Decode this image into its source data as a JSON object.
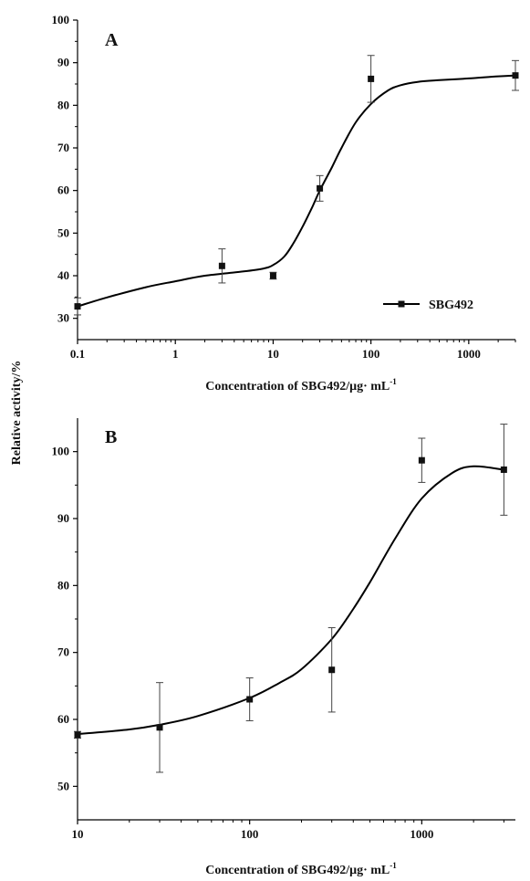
{
  "figure": {
    "shared_ylabel": "Relative activity/%"
  },
  "chart_data": [
    {
      "type": "scatter",
      "panel_label": "A",
      "xscale": "log",
      "xlim": [
        0.1,
        3000
      ],
      "ylim": [
        25,
        100
      ],
      "xticks": [
        0.1,
        1,
        10,
        100,
        1000
      ],
      "xtick_labels": [
        "0.1",
        "1",
        "10",
        "100",
        "1000"
      ],
      "yticks": [
        30,
        40,
        50,
        60,
        70,
        80,
        90,
        100
      ],
      "ytick_labels": [
        "30",
        "40",
        "50",
        "60",
        "70",
        "80",
        "90",
        "100"
      ],
      "xlabel": "Concentration of SBG492/μg· mL",
      "xlabel_sup": "-1",
      "legend": {
        "label": "SBG492",
        "position": "lower-right"
      },
      "series": [
        {
          "name": "SBG492",
          "x": [
            0.1,
            3,
            10,
            30,
            100,
            3000
          ],
          "y": [
            32.8,
            42.3,
            40.0,
            60.5,
            86.2,
            87.0
          ],
          "err": [
            2.0,
            4.0,
            0.8,
            3.0,
            5.5,
            3.5
          ],
          "fit_x": [
            0.1,
            0.2,
            0.5,
            1,
            2,
            5,
            8,
            10,
            13,
            16,
            20,
            25,
            30,
            40,
            50,
            70,
            100,
            150,
            200,
            300,
            500,
            1000,
            2000,
            3000
          ],
          "fit_y": [
            32.8,
            34.9,
            37.3,
            38.7,
            40.0,
            41.0,
            41.7,
            42.5,
            44.5,
            47.5,
            51.5,
            56.0,
            60.0,
            65.5,
            70.0,
            76.0,
            80.3,
            83.5,
            84.7,
            85.5,
            85.9,
            86.3,
            86.8,
            87.0
          ]
        }
      ]
    },
    {
      "type": "scatter",
      "panel_label": "B",
      "xscale": "log",
      "xlim": [
        10,
        3500
      ],
      "ylim": [
        45,
        105
      ],
      "xticks": [
        10,
        100,
        1000
      ],
      "xtick_labels": [
        "10",
        "100",
        "1000"
      ],
      "yticks": [
        50,
        60,
        70,
        80,
        90,
        100
      ],
      "ytick_labels": [
        "50",
        "60",
        "70",
        "80",
        "90",
        "100"
      ],
      "xlabel": "Concentration of SBG492/μg· mL",
      "xlabel_sup": "-1",
      "series": [
        {
          "x": [
            10,
            30,
            100,
            300,
            1000,
            3000
          ],
          "y": [
            57.7,
            58.8,
            63.0,
            67.4,
            98.7,
            97.3
          ],
          "err": [
            0.5,
            6.7,
            3.2,
            6.3,
            3.3,
            6.8
          ],
          "fit_x": [
            10,
            20,
            30,
            50,
            100,
            150,
            200,
            300,
            400,
            500,
            700,
            1000,
            1500,
            2000,
            3000
          ],
          "fit_y": [
            57.8,
            58.5,
            59.2,
            60.5,
            63.2,
            65.5,
            67.5,
            72.0,
            76.5,
            80.5,
            87.0,
            93.0,
            96.8,
            97.8,
            97.3
          ]
        }
      ]
    }
  ]
}
